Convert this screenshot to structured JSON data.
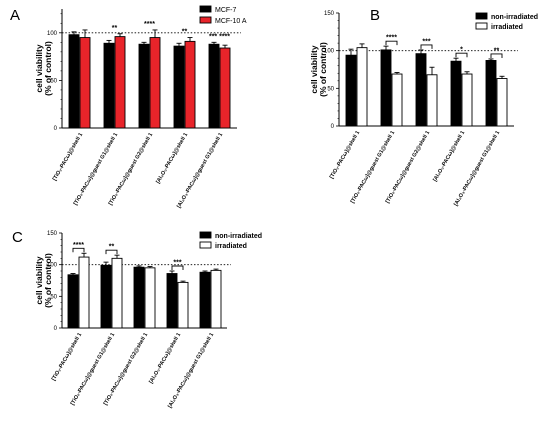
{
  "chart_data": [
    {
      "panel": "A",
      "type": "bar",
      "ylabel": "cell viability\n(% of control)",
      "ylim": [
        0,
        125
      ],
      "yticks": [
        0,
        50,
        100
      ],
      "reference_line": 100,
      "categories": [
        "[TiO₂-PACω]@shell 1",
        "[TiO₂-PACω]@guest G1@shell 1",
        "[TiO₂-PACω]@guest G2@shell 1",
        "[Al₂O₃-PACω]@shell 1",
        "[Al₂O₃-PACω]@guest G1@shell 1"
      ],
      "legend": "top-right",
      "series": [
        {
          "name": "MCF-7",
          "color": "#000000",
          "values": [
            98,
            89,
            88,
            86,
            88
          ],
          "errors": [
            3,
            3,
            2,
            3,
            2
          ]
        },
        {
          "name": "MCF-10 A",
          "color": "#e8242a",
          "values": [
            95,
            96,
            95,
            91,
            84
          ],
          "errors": [
            8,
            3,
            8,
            4,
            3
          ]
        }
      ],
      "significance": [
        {
          "category": 1,
          "label": "**"
        },
        {
          "category": 2,
          "label": "****"
        },
        {
          "category": 3,
          "label": "**"
        },
        {
          "category": 4,
          "label": "*** ****"
        }
      ]
    },
    {
      "panel": "B",
      "type": "bar",
      "ylabel": "cell viability\n(% of control)",
      "ylim": [
        0,
        150
      ],
      "yticks": [
        0,
        50,
        100,
        150
      ],
      "reference_line": 100,
      "categories": [
        "[TiO₂-PACω]@shell 1",
        "[TiO₂-PACω]@guest G1@shell 1",
        "[TiO₂-PACω]@guest G2@shell 1",
        "[Al₂O₃-PACω]@shell 1",
        "[Al₂O₃-PACω]@guest G1@shell 1"
      ],
      "legend": "top-right",
      "series": [
        {
          "name": "non-irradiated",
          "color": "#000000",
          "values": [
            94,
            101,
            96,
            86,
            87
          ],
          "errors": [
            8,
            5,
            5,
            4,
            2
          ]
        },
        {
          "name": "irradiated",
          "color": "#ffffff",
          "values": [
            104,
            69,
            68,
            69,
            63
          ],
          "errors": [
            5,
            2,
            10,
            3,
            3
          ]
        }
      ],
      "significance": [
        {
          "category": 1,
          "label": "****"
        },
        {
          "category": 2,
          "label": "***"
        },
        {
          "category": 3,
          "label": "*"
        },
        {
          "category": 4,
          "label": "**"
        }
      ]
    },
    {
      "panel": "C",
      "type": "bar",
      "ylabel": "cell viability\n(% of control)",
      "ylim": [
        0,
        150
      ],
      "yticks": [
        0,
        50,
        100,
        150
      ],
      "reference_line": 100,
      "categories": [
        "[TiO₂-PACω]@shell 1",
        "[TiO₂-PACω]@guest G1@shell 1",
        "[TiO₂-PACω]@guest G2@shell 1",
        "[Al₂O₃-PACω]@shell 1",
        "[Al₂O₃-PACω]@guest G1@shell 1"
      ],
      "legend": "top-right",
      "series": [
        {
          "name": "non-irradiated",
          "color": "#000000",
          "values": [
            84,
            99,
            96,
            86,
            88
          ],
          "errors": [
            2,
            5,
            2,
            4,
            2
          ]
        },
        {
          "name": "irradiated",
          "color": "#ffffff",
          "values": [
            112,
            110,
            95,
            72,
            91
          ],
          "errors": [
            6,
            5,
            2,
            2,
            2
          ]
        }
      ],
      "significance": [
        {
          "category": 0,
          "label": "****"
        },
        {
          "category": 1,
          "label": "**"
        },
        {
          "category": 3,
          "label": "***"
        }
      ]
    }
  ]
}
